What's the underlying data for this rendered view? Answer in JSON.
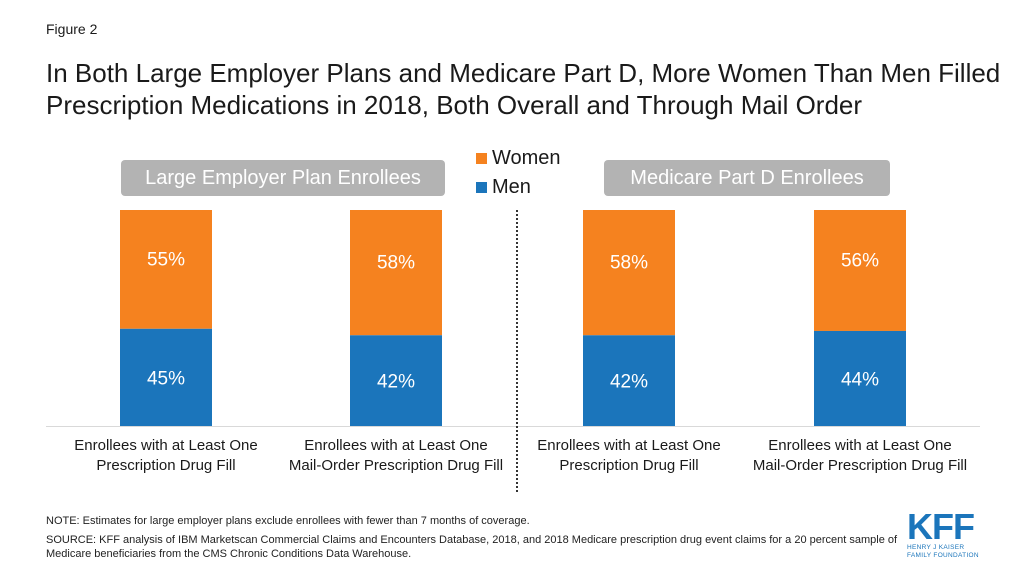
{
  "figure_label": "Figure 2",
  "title": "In Both Large Employer Plans and Medicare Part D, More Women Than Men Filled Prescription Medications in 2018, Both Overall and Through Mail Order",
  "groups": [
    "Large Employer Plan Enrollees",
    "Medicare Part D Enrollees"
  ],
  "legend": [
    {
      "name": "Women",
      "color": "#f5821f"
    },
    {
      "name": "Men",
      "color": "#1b75bb"
    }
  ],
  "chart_data": {
    "type": "bar",
    "stacked": true,
    "percent_stacked": true,
    "categories": [
      "Enrollees with at Least One Prescription Drug Fill",
      "Enrollees with at Least One Mail-Order Prescription Drug Fill",
      "Enrollees with at Least One Prescription Drug Fill",
      "Enrollees with at Least One Mail-Order Prescription Drug Fill"
    ],
    "series": [
      {
        "name": "Men",
        "values": [
          45,
          42,
          42,
          44
        ],
        "labels": [
          "45%",
          "42%",
          "42%",
          "44%"
        ],
        "color": "#1b75bb"
      },
      {
        "name": "Women",
        "values": [
          55,
          58,
          58,
          56
        ],
        "labels": [
          "55%",
          "58%",
          "58%",
          "56%"
        ],
        "color": "#f5821f"
      }
    ],
    "legend_position": "top-center",
    "grid": false,
    "ylim": [
      0,
      100
    ]
  },
  "note": "NOTE: Estimates for large employer plans exclude enrollees with fewer than 7 months of coverage.",
  "source": "SOURCE: KFF analysis of IBM Marketscan Commercial Claims and Encounters Database, 2018, and 2018 Medicare prescription drug event claims for a 20 percent sample of Medicare beneficiaries from the CMS Chronic Conditions Data Warehouse.",
  "logo": {
    "mark": "KFF",
    "subtitle_line1": "HENRY J KAISER",
    "subtitle_line2": "FAMILY FOUNDATION"
  }
}
